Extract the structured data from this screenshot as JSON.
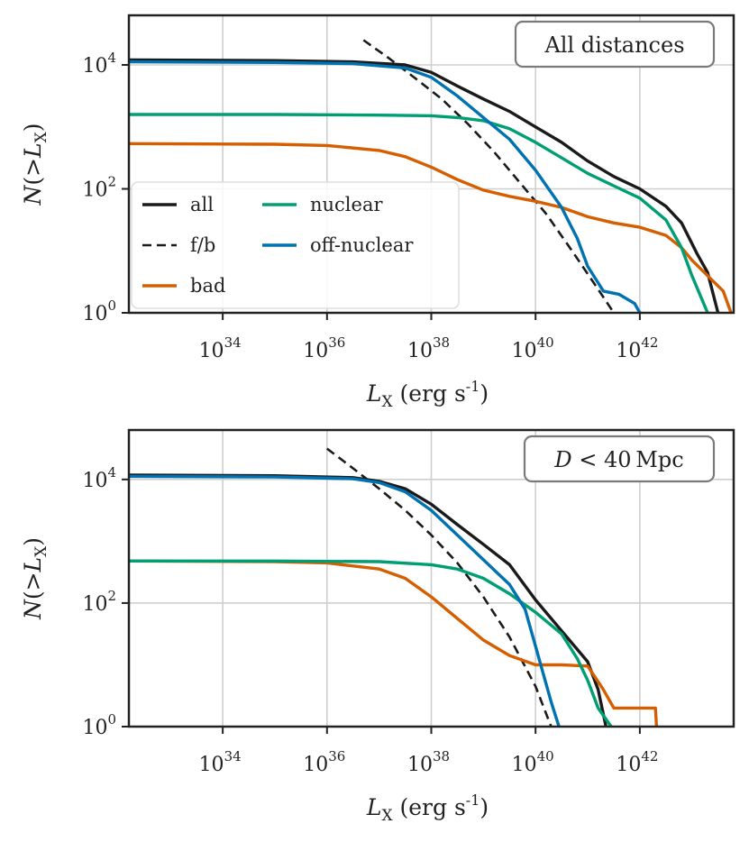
{
  "chart_data": [
    {
      "type": "line",
      "title": "",
      "annotation": "All distances",
      "xlabel": "L_X (erg s^-1)",
      "ylabel": "N(>L_X)",
      "xscale": "log",
      "yscale": "log",
      "xlim_log10": [
        32.2,
        43.8
      ],
      "ylim_log10": [
        0,
        4.8
      ],
      "xticks": [
        {
          "base": "10",
          "exp": "34",
          "log10": 34
        },
        {
          "base": "10",
          "exp": "36",
          "log10": 36
        },
        {
          "base": "10",
          "exp": "38",
          "log10": 38
        },
        {
          "base": "10",
          "exp": "40",
          "log10": 40
        },
        {
          "base": "10",
          "exp": "42",
          "log10": 42
        }
      ],
      "yticks": [
        {
          "base": "10",
          "exp": "0",
          "log10": 0
        },
        {
          "base": "10",
          "exp": "2",
          "log10": 2
        },
        {
          "base": "10",
          "exp": "4",
          "log10": 4
        }
      ],
      "grid": true,
      "legend": {
        "position": "bottom-left",
        "columns": 2,
        "entries": [
          {
            "label": "all",
            "series": "all"
          },
          {
            "label": "f/b",
            "series": "fb"
          },
          {
            "label": "bad",
            "series": "bad"
          },
          {
            "label": "nuclear",
            "series": "nuclear"
          },
          {
            "label": "off-nuclear",
            "series": "offnuclear"
          }
        ]
      },
      "series": [
        {
          "name": "all",
          "color": "#1a1a1a",
          "dash": false,
          "x_log10": [
            32.2,
            35.0,
            36.5,
            37.5,
            38.0,
            38.5,
            39.0,
            39.5,
            40.0,
            40.5,
            41.0,
            41.5,
            42.0,
            42.5,
            42.8,
            43.1,
            43.3,
            43.5
          ],
          "y_log10": [
            4.08,
            4.07,
            4.05,
            4.0,
            3.88,
            3.66,
            3.45,
            3.25,
            3.0,
            2.75,
            2.45,
            2.2,
            2.0,
            1.72,
            1.45,
            0.95,
            0.65,
            0.0
          ]
        },
        {
          "name": "f/b",
          "color": "#1a1a1a",
          "dash": true,
          "x_log10": [
            36.7,
            37.2,
            37.7,
            38.2,
            38.7,
            39.2,
            39.7,
            40.2,
            40.7,
            41.2,
            41.5
          ],
          "y_log10": [
            4.4,
            4.1,
            3.78,
            3.45,
            3.05,
            2.6,
            2.1,
            1.6,
            1.0,
            0.38,
            0.0
          ]
        },
        {
          "name": "bad",
          "color": "#d55e00",
          "dash": false,
          "x_log10": [
            32.2,
            35.0,
            36.0,
            37.0,
            37.5,
            38.0,
            38.5,
            39.0,
            39.5,
            40.0,
            40.5,
            41.0,
            41.5,
            42.0,
            42.5,
            42.8,
            43.0,
            43.3,
            43.6,
            43.75
          ],
          "y_log10": [
            2.73,
            2.72,
            2.7,
            2.62,
            2.52,
            2.35,
            2.15,
            1.98,
            1.88,
            1.8,
            1.7,
            1.55,
            1.45,
            1.38,
            1.25,
            1.05,
            0.85,
            0.6,
            0.35,
            0.0
          ]
        },
        {
          "name": "nuclear",
          "color": "#009e73",
          "dash": false,
          "x_log10": [
            32.2,
            35.0,
            37.0,
            38.0,
            38.5,
            39.0,
            39.5,
            40.0,
            40.5,
            41.0,
            41.5,
            42.0,
            42.5,
            42.8,
            43.0,
            43.2,
            43.3
          ],
          "y_log10": [
            3.2,
            3.2,
            3.19,
            3.18,
            3.15,
            3.1,
            2.97,
            2.75,
            2.5,
            2.25,
            2.05,
            1.85,
            1.5,
            1.05,
            0.6,
            0.2,
            0.0
          ]
        },
        {
          "name": "off-nuclear",
          "color": "#0072b2",
          "dash": false,
          "x_log10": [
            32.2,
            35.0,
            36.5,
            37.5,
            38.0,
            38.5,
            39.0,
            39.5,
            40.0,
            40.5,
            40.8,
            41.0,
            41.3,
            41.6,
            41.9,
            42.0
          ],
          "y_log10": [
            4.05,
            4.04,
            4.02,
            3.95,
            3.8,
            3.5,
            3.15,
            2.8,
            2.3,
            1.7,
            1.2,
            0.75,
            0.35,
            0.3,
            0.15,
            0.0
          ]
        }
      ]
    },
    {
      "type": "line",
      "title": "",
      "annotation": "D < 40 Mpc",
      "xlabel": "L_X (erg s^-1)",
      "ylabel": "N(>L_X)",
      "xscale": "log",
      "yscale": "log",
      "xlim_log10": [
        32.2,
        43.8
      ],
      "ylim_log10": [
        0,
        4.8
      ],
      "xticks": [
        {
          "base": "10",
          "exp": "34",
          "log10": 34
        },
        {
          "base": "10",
          "exp": "36",
          "log10": 36
        },
        {
          "base": "10",
          "exp": "38",
          "log10": 38
        },
        {
          "base": "10",
          "exp": "40",
          "log10": 40
        },
        {
          "base": "10",
          "exp": "42",
          "log10": 42
        }
      ],
      "yticks": [
        {
          "base": "10",
          "exp": "0",
          "log10": 0
        },
        {
          "base": "10",
          "exp": "2",
          "log10": 2
        },
        {
          "base": "10",
          "exp": "4",
          "log10": 4
        }
      ],
      "grid": true,
      "series": [
        {
          "name": "all",
          "color": "#1a1a1a",
          "dash": false,
          "x_log10": [
            32.2,
            35.0,
            36.5,
            37.0,
            37.5,
            38.0,
            38.5,
            39.0,
            39.5,
            40.0,
            40.5,
            41.0,
            41.2,
            41.35
          ],
          "y_log10": [
            4.07,
            4.06,
            4.03,
            3.97,
            3.85,
            3.6,
            3.27,
            2.95,
            2.62,
            2.05,
            1.55,
            1.05,
            0.6,
            0.0
          ]
        },
        {
          "name": "f/b",
          "color": "#1a1a1a",
          "dash": true,
          "x_log10": [
            36.0,
            36.5,
            37.0,
            37.5,
            38.0,
            38.5,
            39.0,
            39.5,
            40.0,
            40.3
          ],
          "y_log10": [
            4.5,
            4.18,
            3.85,
            3.5,
            3.1,
            2.65,
            2.1,
            1.45,
            0.65,
            0.0
          ]
        },
        {
          "name": "bad",
          "color": "#d55e00",
          "dash": false,
          "x_log10": [
            32.2,
            35.0,
            36.0,
            37.0,
            37.5,
            38.0,
            38.5,
            39.0,
            39.5,
            40.0,
            40.5,
            41.0,
            41.3,
            41.5,
            42.0,
            42.3,
            42.32
          ],
          "y_log10": [
            2.68,
            2.67,
            2.65,
            2.55,
            2.4,
            2.1,
            1.75,
            1.4,
            1.15,
            1.0,
            1.0,
            0.98,
            0.6,
            0.3,
            0.3,
            0.3,
            0.0
          ]
        },
        {
          "name": "nuclear",
          "color": "#009e73",
          "dash": false,
          "x_log10": [
            32.2,
            35.0,
            37.0,
            38.0,
            38.5,
            39.0,
            39.5,
            40.0,
            40.5,
            40.8,
            41.0,
            41.2,
            41.45
          ],
          "y_log10": [
            2.68,
            2.68,
            2.67,
            2.62,
            2.55,
            2.4,
            2.15,
            1.85,
            1.5,
            1.1,
            0.75,
            0.3,
            0.0
          ]
        },
        {
          "name": "off-nuclear",
          "color": "#0072b2",
          "dash": false,
          "x_log10": [
            32.2,
            35.0,
            36.5,
            37.0,
            37.5,
            38.0,
            38.5,
            39.0,
            39.5,
            39.8,
            40.0,
            40.3,
            40.45
          ],
          "y_log10": [
            4.05,
            4.04,
            4.01,
            3.95,
            3.8,
            3.5,
            3.1,
            2.7,
            2.3,
            1.9,
            1.3,
            0.4,
            0.0
          ]
        }
      ]
    }
  ]
}
